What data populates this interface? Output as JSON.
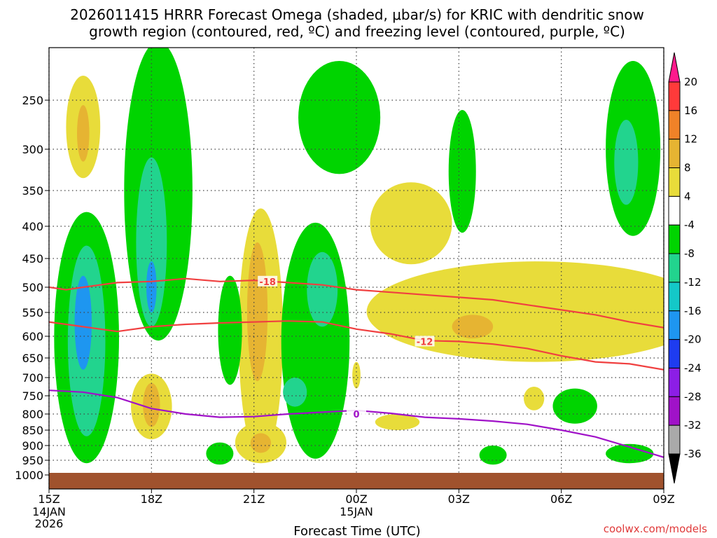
{
  "chart_data": {
    "type": "heatmap",
    "title_line1": "2026011415 HRRR Forecast Omega (shaded, μbar/s) for KRIC with dendritic snow",
    "title_line2": "growth region (contoured, red, ºC) and freezing level (contoured, purple, ºC)",
    "xlabel": "Forecast Time (UTC)",
    "credit": "coolwx.com/models",
    "y_axis": {
      "scale": "pressure (hPa, inverted)",
      "ticks": [
        250,
        300,
        350,
        400,
        450,
        500,
        550,
        600,
        650,
        700,
        750,
        800,
        850,
        900,
        950,
        1000
      ],
      "tick_labels": [
        "250",
        "300",
        "350",
        "400",
        "450",
        "500",
        "550",
        "600",
        "650",
        "700",
        "750",
        "800",
        "850",
        "900",
        "950",
        "1000"
      ]
    },
    "x_axis": {
      "ticks": [
        "15Z",
        "18Z",
        "21Z",
        "00Z",
        "03Z",
        "06Z",
        "09Z"
      ],
      "sub_labels": [
        [
          "14JAN",
          "2026"
        ],
        [],
        [],
        [
          "15JAN"
        ],
        [],
        [],
        []
      ]
    },
    "colorbar": {
      "labels": [
        "20",
        "16",
        "12",
        "8",
        "4",
        "-4",
        "-8",
        "-12",
        "-16",
        "-20",
        "-24",
        "-28",
        "-32",
        "-36"
      ],
      "colors": [
        "#ff1a8c",
        "#ff3a3a",
        "#f08228",
        "#e6b432",
        "#e8dc3a",
        "#ffffff",
        "#00d400",
        "#22d48e",
        "#14c8c8",
        "#1e96f0",
        "#1e3cf0",
        "#8c1ee6",
        "#a012c8",
        "#aaaaaa",
        "#000000"
      ]
    },
    "contours": [
      {
        "level": "-18",
        "color": "#f04040",
        "points": [
          [
            15,
            500
          ],
          [
            15.5,
            505
          ],
          [
            16,
            500
          ],
          [
            17,
            492
          ],
          [
            18,
            490
          ],
          [
            19,
            485
          ],
          [
            20,
            490
          ],
          [
            21,
            488
          ],
          [
            22,
            492
          ],
          [
            23,
            496
          ],
          [
            24,
            505
          ],
          [
            25,
            510
          ],
          [
            26,
            515
          ],
          [
            27,
            520
          ],
          [
            28,
            525
          ],
          [
            29,
            535
          ],
          [
            30,
            545
          ],
          [
            31,
            555
          ],
          [
            32,
            570
          ],
          [
            33,
            582
          ]
        ]
      },
      {
        "level": "-12",
        "color": "#f04040",
        "points": [
          [
            15,
            570
          ],
          [
            16,
            580
          ],
          [
            17,
            590
          ],
          [
            18,
            580
          ],
          [
            19,
            575
          ],
          [
            20,
            572
          ],
          [
            21,
            570
          ],
          [
            22,
            568
          ],
          [
            23,
            570
          ],
          [
            24,
            585
          ],
          [
            25,
            595
          ],
          [
            26,
            610
          ],
          [
            27,
            612
          ],
          [
            28,
            618
          ],
          [
            29,
            628
          ],
          [
            30,
            645
          ],
          [
            31,
            660
          ],
          [
            32,
            665
          ],
          [
            33,
            680
          ]
        ]
      },
      {
        "level": "0",
        "color": "#a012c8",
        "points": [
          [
            15,
            735
          ],
          [
            16,
            740
          ],
          [
            17,
            755
          ],
          [
            18,
            785
          ],
          [
            19,
            800
          ],
          [
            20,
            810
          ],
          [
            21,
            808
          ],
          [
            22,
            800
          ],
          [
            23,
            795
          ],
          [
            24,
            790
          ],
          [
            25,
            798
          ],
          [
            26,
            810
          ],
          [
            27,
            815
          ],
          [
            28,
            822
          ],
          [
            29,
            832
          ],
          [
            30,
            850
          ],
          [
            31,
            872
          ],
          [
            32,
            905
          ],
          [
            33,
            940
          ]
        ]
      }
    ],
    "shaded_regions": [
      {
        "value": 6,
        "color": "#e8dc3a",
        "center": [
          16.0,
          280
        ],
        "half_width": 0.5,
        "p_range": [
          225,
          335
        ]
      },
      {
        "value": 10,
        "color": "#e6b432",
        "center": [
          16.0,
          285
        ],
        "half_width": 0.18,
        "p_range": [
          255,
          315
        ]
      },
      {
        "value": -6,
        "color": "#00d400",
        "center": [
          16.1,
          600
        ],
        "half_width": 0.95,
        "p_range": [
          380,
          960
        ]
      },
      {
        "value": -12,
        "color": "#22d48e",
        "center": [
          16.1,
          610
        ],
        "half_width": 0.55,
        "p_range": [
          430,
          870
        ]
      },
      {
        "value": -16,
        "color": "#1e96f0",
        "center": [
          16.0,
          560
        ],
        "half_width": 0.25,
        "p_range": [
          480,
          680
        ]
      },
      {
        "value": -6,
        "color": "#00d400",
        "center": [
          18.2,
          380
        ],
        "half_width": 1.0,
        "p_range": [
          190,
          610
        ]
      },
      {
        "value": -12,
        "color": "#22d48e",
        "center": [
          18.0,
          420
        ],
        "half_width": 0.45,
        "p_range": [
          310,
          580
        ]
      },
      {
        "value": -16,
        "color": "#1e96f0",
        "center": [
          18.0,
          500
        ],
        "half_width": 0.15,
        "p_range": [
          455,
          550
        ]
      },
      {
        "value": 6,
        "color": "#e8dc3a",
        "center": [
          18.0,
          770
        ],
        "half_width": 0.6,
        "p_range": [
          690,
          880
        ]
      },
      {
        "value": 10,
        "color": "#e6b432",
        "center": [
          18.0,
          770
        ],
        "half_width": 0.25,
        "p_range": [
          715,
          840
        ]
      },
      {
        "value": 6,
        "color": "#e8dc3a",
        "center": [
          21.2,
          630
        ],
        "half_width": 0.65,
        "p_range": [
          375,
          950
        ]
      },
      {
        "value": 10,
        "color": "#e6b432",
        "center": [
          21.1,
          580
        ],
        "half_width": 0.3,
        "p_range": [
          425,
          710
        ]
      },
      {
        "value": 6,
        "color": "#e8dc3a",
        "center": [
          21.2,
          885
        ],
        "half_width": 0.75,
        "p_range": [
          825,
          960
        ]
      },
      {
        "value": 10,
        "color": "#e6b432",
        "center": [
          21.2,
          885
        ],
        "half_width": 0.3,
        "p_range": [
          860,
          925
        ]
      },
      {
        "value": -6,
        "color": "#00d400",
        "center": [
          22.8,
          700
        ],
        "half_width": 1.0,
        "p_range": [
          395,
          945
        ]
      },
      {
        "value": -12,
        "color": "#22d48e",
        "center": [
          23.0,
          500
        ],
        "half_width": 0.45,
        "p_range": [
          440,
          580
        ]
      },
      {
        "value": -12,
        "color": "#22d48e",
        "center": [
          22.2,
          745
        ],
        "half_width": 0.35,
        "p_range": [
          700,
          780
        ]
      },
      {
        "value": -6,
        "color": "#00d400",
        "center": [
          23.5,
          260
        ],
        "half_width": 1.2,
        "p_range": [
          210,
          330
        ]
      },
      {
        "value": -6,
        "color": "#00d400",
        "center": [
          20.3,
          620
        ],
        "half_width": 0.35,
        "p_range": [
          480,
          720
        ]
      },
      {
        "value": -6,
        "color": "#00d400",
        "center": [
          20.0,
          925
        ],
        "half_width": 0.4,
        "p_range": [
          890,
          965
        ]
      },
      {
        "value": 6,
        "color": "#e8dc3a",
        "center": [
          25.6,
          390
        ],
        "half_width": 1.2,
        "p_range": [
          340,
          460
        ]
      },
      {
        "value": 6,
        "color": "#e8dc3a",
        "center": [
          29.3,
          550
        ],
        "half_width": 5.0,
        "p_range": [
          455,
          660
        ]
      },
      {
        "value": 10,
        "color": "#e6b432",
        "center": [
          27.4,
          580
        ],
        "half_width": 0.6,
        "p_range": [
          555,
          605
        ]
      },
      {
        "value": -6,
        "color": "#00d400",
        "center": [
          27.1,
          340
        ],
        "half_width": 0.4,
        "p_range": [
          260,
          410
        ]
      },
      {
        "value": -6,
        "color": "#00d400",
        "center": [
          32.1,
          280
        ],
        "half_width": 0.8,
        "p_range": [
          210,
          415
        ]
      },
      {
        "value": -12,
        "color": "#22d48e",
        "center": [
          31.9,
          320
        ],
        "half_width": 0.35,
        "p_range": [
          270,
          370
        ]
      },
      {
        "value": -6,
        "color": "#00d400",
        "center": [
          30.4,
          780
        ],
        "half_width": 0.65,
        "p_range": [
          730,
          830
        ]
      },
      {
        "value": -6,
        "color": "#00d400",
        "center": [
          32.0,
          930
        ],
        "half_width": 0.7,
        "p_range": [
          895,
          960
        ]
      },
      {
        "value": -6,
        "color": "#00d400",
        "center": [
          28.0,
          935
        ],
        "half_width": 0.4,
        "p_range": [
          900,
          965
        ]
      },
      {
        "value": 6,
        "color": "#e8dc3a",
        "center": [
          25.2,
          820
        ],
        "half_width": 0.65,
        "p_range": [
          800,
          850
        ]
      },
      {
        "value": 6,
        "color": "#e8dc3a",
        "center": [
          24.0,
          690
        ],
        "half_width": 0.12,
        "p_range": [
          660,
          730
        ]
      },
      {
        "value": 6,
        "color": "#e8dc3a",
        "center": [
          29.2,
          755
        ],
        "half_width": 0.3,
        "p_range": [
          725,
          790
        ]
      }
    ]
  }
}
